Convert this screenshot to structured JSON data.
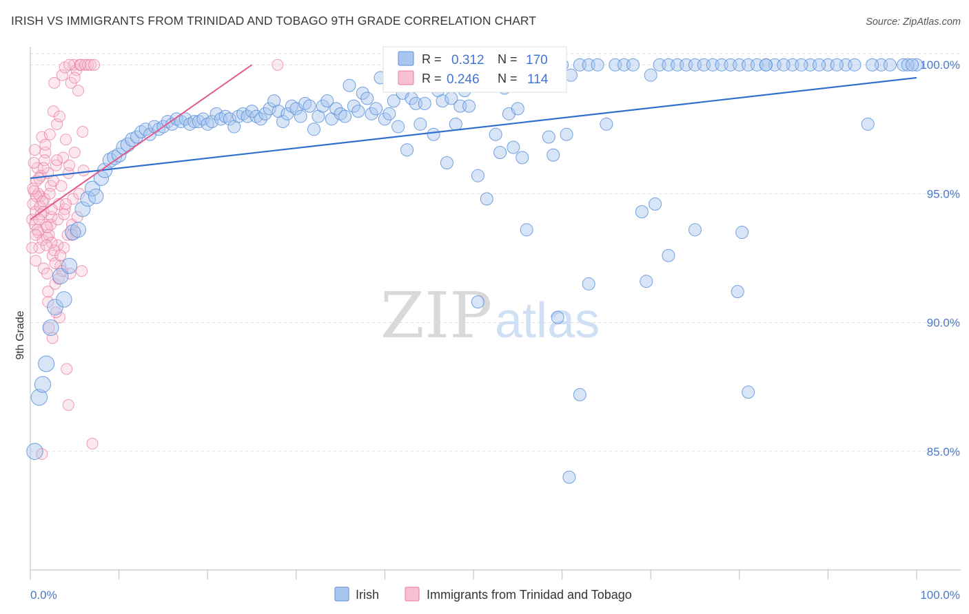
{
  "title": "IRISH VS IMMIGRANTS FROM TRINIDAD AND TOBAGO 9TH GRADE CORRELATION CHART",
  "source": "Source: ZipAtlas.com",
  "watermark": {
    "zip": "ZIP",
    "atlas": "atlas"
  },
  "colors": {
    "irish_fill": "#a9c6ee",
    "irish_stroke": "#5b8fd8",
    "irish_line": "#2f6fce",
    "tt_fill": "#f6c0d2",
    "tt_stroke": "#e87ca0",
    "tt_line": "#e35a8a",
    "grid": "#dcdcdc",
    "axis": "#bbbbbb",
    "tick_text": "#4a78c8"
  },
  "legend": {
    "r_label": "R =",
    "n_label": "N =",
    "rows": [
      {
        "series": "irish",
        "r": "0.312",
        "n": "170"
      },
      {
        "series": "tt",
        "r": "0.246",
        "n": "114"
      }
    ]
  },
  "bottom_legend": [
    {
      "series": "irish",
      "label": "Irish"
    },
    {
      "series": "tt",
      "label": "Immigrants from Trinidad and Tobago"
    }
  ],
  "chart_data": {
    "type": "scatter",
    "title": "IRISH VS IMMIGRANTS FROM TRINIDAD AND TOBAGO 9TH GRADE CORRELATION CHART",
    "xlabel": "",
    "ylabel": "9th Grade",
    "xlim": [
      0,
      100
    ],
    "ylim": [
      80.4,
      100.7
    ],
    "x_tick_labels": [
      "0.0%",
      "100.0%"
    ],
    "y_ticks": [
      85,
      90,
      95,
      100
    ],
    "y_tick_labels": [
      "85.0%",
      "90.0%",
      "95.0%",
      "100.0%"
    ],
    "grid": true,
    "legend_position": "top-center",
    "series": [
      {
        "name": "Irish",
        "trend": {
          "x": [
            0,
            100
          ],
          "y": [
            95.6,
            99.5
          ]
        },
        "points": [
          [
            0.5,
            85.0
          ],
          [
            1,
            87.1
          ],
          [
            1.4,
            87.6
          ],
          [
            1.8,
            88.4
          ],
          [
            2.3,
            89.8
          ],
          [
            2.8,
            90.6
          ],
          [
            3.8,
            90.9
          ],
          [
            3.4,
            91.8
          ],
          [
            4.4,
            92.2
          ],
          [
            4.8,
            93.5
          ],
          [
            5.4,
            93.6
          ],
          [
            5.9,
            94.4
          ],
          [
            6.5,
            94.8
          ],
          [
            7.0,
            95.2
          ],
          [
            7.4,
            94.9
          ],
          [
            8.0,
            95.6
          ],
          [
            8.4,
            95.9
          ],
          [
            9.0,
            96.3
          ],
          [
            9.5,
            96.4
          ],
          [
            10.0,
            96.5
          ],
          [
            10.5,
            96.8
          ],
          [
            11.0,
            96.9
          ],
          [
            11.5,
            97.1
          ],
          [
            12.0,
            97.2
          ],
          [
            12.5,
            97.4
          ],
          [
            13.0,
            97.5
          ],
          [
            13.5,
            97.3
          ],
          [
            14.0,
            97.6
          ],
          [
            14.5,
            97.5
          ],
          [
            15.0,
            97.6
          ],
          [
            15.5,
            97.8
          ],
          [
            16.0,
            97.7
          ],
          [
            16.5,
            97.9
          ],
          [
            17.0,
            97.8
          ],
          [
            17.5,
            97.9
          ],
          [
            18.0,
            97.7
          ],
          [
            18.5,
            97.8
          ],
          [
            19.0,
            97.8
          ],
          [
            19.5,
            97.9
          ],
          [
            20.0,
            97.7
          ],
          [
            20.5,
            97.8
          ],
          [
            21.0,
            98.1
          ],
          [
            21.5,
            97.9
          ],
          [
            22.0,
            98.0
          ],
          [
            22.5,
            97.9
          ],
          [
            23.0,
            97.6
          ],
          [
            23.5,
            98.0
          ],
          [
            24.0,
            98.1
          ],
          [
            24.5,
            98.0
          ],
          [
            25.0,
            98.2
          ],
          [
            25.5,
            98.0
          ],
          [
            26.0,
            97.9
          ],
          [
            26.5,
            98.1
          ],
          [
            27.0,
            98.3
          ],
          [
            27.5,
            98.6
          ],
          [
            28.0,
            98.2
          ],
          [
            28.5,
            97.8
          ],
          [
            29.0,
            98.1
          ],
          [
            29.5,
            98.4
          ],
          [
            30.0,
            98.3
          ],
          [
            30.5,
            98.0
          ],
          [
            31.0,
            98.5
          ],
          [
            31.5,
            98.4
          ],
          [
            32.0,
            97.5
          ],
          [
            32.5,
            98.0
          ],
          [
            33.0,
            98.4
          ],
          [
            33.5,
            98.6
          ],
          [
            34.0,
            97.9
          ],
          [
            34.5,
            98.3
          ],
          [
            35.0,
            98.1
          ],
          [
            35.5,
            98.0
          ],
          [
            36.0,
            99.2
          ],
          [
            36.5,
            98.4
          ],
          [
            37.0,
            98.2
          ],
          [
            37.5,
            98.9
          ],
          [
            38.0,
            98.7
          ],
          [
            38.5,
            98.1
          ],
          [
            39.0,
            98.3
          ],
          [
            39.5,
            99.5
          ],
          [
            40.0,
            97.9
          ],
          [
            40.5,
            98.1
          ],
          [
            41.0,
            98.6
          ],
          [
            41.5,
            97.6
          ],
          [
            42.0,
            98.9
          ],
          [
            42.5,
            96.7
          ],
          [
            43.0,
            98.7
          ],
          [
            43.5,
            98.5
          ],
          [
            44.0,
            97.7
          ],
          [
            44.5,
            98.5
          ],
          [
            45.0,
            99.6
          ],
          [
            45.5,
            97.3
          ],
          [
            46.0,
            99.0
          ],
          [
            46.5,
            98.6
          ],
          [
            47.0,
            96.2
          ],
          [
            47.5,
            98.7
          ],
          [
            48.0,
            97.7
          ],
          [
            48.5,
            98.4
          ],
          [
            49.0,
            99.0
          ],
          [
            49.5,
            98.4
          ],
          [
            50.0,
            100.0
          ],
          [
            50.5,
            95.7
          ],
          [
            51.0,
            99.6
          ],
          [
            51.5,
            94.8
          ],
          [
            52.0,
            99.5
          ],
          [
            52.5,
            97.3
          ],
          [
            53.0,
            96.6
          ],
          [
            53.5,
            99.1
          ],
          [
            54.0,
            98.1
          ],
          [
            54.5,
            96.8
          ],
          [
            55.0,
            98.3
          ],
          [
            55.5,
            96.4
          ],
          [
            56.0,
            93.6
          ],
          [
            56.5,
            100.0
          ],
          [
            57.0,
            99.3
          ],
          [
            58.0,
            100.0
          ],
          [
            58.5,
            97.2
          ],
          [
            59.0,
            96.5
          ],
          [
            59.5,
            90.2
          ],
          [
            60.0,
            100.0
          ],
          [
            60.5,
            97.3
          ],
          [
            61.0,
            99.6
          ],
          [
            62.0,
            100.0
          ],
          [
            63.0,
            100.0
          ],
          [
            64.0,
            100.0
          ],
          [
            65.0,
            97.7
          ],
          [
            66.0,
            100.0
          ],
          [
            67.0,
            100.0
          ],
          [
            68.0,
            100.0
          ],
          [
            69.0,
            94.3
          ],
          [
            70.0,
            99.6
          ],
          [
            70.5,
            94.6
          ],
          [
            71.0,
            100.0
          ],
          [
            72.0,
            100.0
          ],
          [
            73.0,
            100.0
          ],
          [
            74.0,
            100.0
          ],
          [
            75.0,
            100.0
          ],
          [
            76.0,
            100.0
          ],
          [
            77.0,
            100.0
          ],
          [
            78.0,
            100.0
          ],
          [
            79.0,
            100.0
          ],
          [
            80.0,
            100.0
          ],
          [
            81.0,
            100.0
          ],
          [
            82.0,
            100.0
          ],
          [
            84.0,
            100.0
          ],
          [
            86.0,
            100.0
          ],
          [
            88.0,
            100.0
          ],
          [
            94.5,
            97.7
          ],
          [
            100.0,
            100.0
          ],
          [
            90.0,
            100.0
          ],
          [
            92.0,
            100.0
          ],
          [
            96.0,
            100.0
          ],
          [
            83.0,
            100.0
          ],
          [
            85.0,
            100.0
          ],
          [
            87.0,
            100.0
          ],
          [
            89.0,
            100.0
          ],
          [
            91.0,
            100.0
          ],
          [
            93.0,
            100.0
          ],
          [
            95.0,
            100.0
          ],
          [
            97.0,
            100.0
          ],
          [
            80.3,
            93.5
          ],
          [
            79.8,
            91.2
          ],
          [
            75.0,
            93.6
          ],
          [
            72.0,
            92.6
          ],
          [
            69.5,
            91.6
          ],
          [
            63.0,
            91.5
          ],
          [
            62.0,
            87.2
          ],
          [
            60.8,
            84.0
          ],
          [
            50.5,
            90.8
          ],
          [
            81.0,
            87.3
          ],
          [
            83.0,
            100.0
          ],
          [
            98.5,
            100.0
          ],
          [
            99.0,
            100.0
          ],
          [
            99.5,
            100.0
          ]
        ]
      },
      {
        "name": "Immigrants from Trinidad and Tobago",
        "trend": {
          "x": [
            0,
            25
          ],
          "y": [
            94.0,
            100.0
          ]
        },
        "points": [
          [
            0.2,
            94.0
          ],
          [
            0.3,
            94.6
          ],
          [
            0.4,
            95.1
          ],
          [
            0.5,
            93.8
          ],
          [
            0.6,
            94.3
          ],
          [
            0.7,
            95.5
          ],
          [
            0.8,
            96.0
          ],
          [
            0.9,
            93.5
          ],
          [
            1.0,
            92.9
          ],
          [
            1.1,
            94.9
          ],
          [
            1.2,
            95.7
          ],
          [
            1.3,
            97.2
          ],
          [
            1.4,
            93.2
          ],
          [
            1.5,
            92.1
          ],
          [
            1.6,
            94.8
          ],
          [
            1.7,
            96.6
          ],
          [
            1.8,
            93.8
          ],
          [
            1.9,
            91.9
          ],
          [
            2.0,
            90.8
          ],
          [
            2.1,
            93.4
          ],
          [
            2.2,
            97.3
          ],
          [
            2.3,
            95.3
          ],
          [
            2.4,
            94.1
          ],
          [
            2.5,
            92.6
          ],
          [
            2.6,
            98.2
          ],
          [
            2.7,
            99.3
          ],
          [
            2.8,
            91.5
          ],
          [
            2.9,
            96.1
          ],
          [
            3.0,
            97.7
          ],
          [
            3.1,
            93.0
          ],
          [
            3.2,
            94.6
          ],
          [
            3.3,
            90.2
          ],
          [
            3.4,
            92.2
          ],
          [
            3.5,
            95.3
          ],
          [
            3.6,
            99.6
          ],
          [
            3.7,
            96.4
          ],
          [
            3.8,
            92.9
          ],
          [
            3.9,
            94.4
          ],
          [
            4.0,
            97.1
          ],
          [
            4.1,
            88.2
          ],
          [
            4.2,
            93.4
          ],
          [
            4.3,
            95.8
          ],
          [
            4.4,
            96.1
          ],
          [
            4.5,
            91.9
          ],
          [
            4.6,
            99.3
          ],
          [
            4.7,
            93.8
          ],
          [
            4.8,
            94.8
          ],
          [
            4.9,
            100.0
          ],
          [
            5.0,
            96.6
          ],
          [
            5.1,
            93.5
          ],
          [
            5.2,
            99.8
          ],
          [
            5.3,
            94.1
          ],
          [
            5.4,
            99.0
          ],
          [
            5.5,
            95.0
          ],
          [
            5.6,
            100.0
          ],
          [
            5.7,
            100.0
          ],
          [
            5.8,
            92.0
          ],
          [
            5.9,
            97.4
          ],
          [
            6.0,
            95.9
          ],
          [
            6.2,
            100.0
          ],
          [
            6.5,
            100.0
          ],
          [
            6.8,
            100.0
          ],
          [
            7.0,
            85.3
          ],
          [
            7.2,
            100.0
          ],
          [
            2.0,
            91.2
          ],
          [
            2.5,
            89.4
          ],
          [
            4.3,
            86.8
          ],
          [
            1.3,
            84.9
          ],
          [
            0.6,
            92.4
          ],
          [
            0.9,
            95.0
          ],
          [
            1.1,
            94.5
          ],
          [
            1.5,
            94.3
          ],
          [
            1.9,
            93.3
          ],
          [
            2.3,
            93.8
          ],
          [
            2.7,
            92.8
          ],
          [
            3.1,
            94.0
          ],
          [
            0.4,
            96.2
          ],
          [
            0.7,
            94.9
          ],
          [
            1.0,
            95.6
          ],
          [
            1.2,
            94.2
          ],
          [
            1.6,
            96.3
          ],
          [
            2.0,
            95.8
          ],
          [
            2.4,
            93.1
          ],
          [
            2.8,
            92.3
          ],
          [
            3.2,
            91.7
          ],
          [
            3.6,
            92.0
          ],
          [
            4.0,
            94.6
          ],
          [
            0.3,
            95.2
          ],
          [
            0.8,
            93.6
          ],
          [
            1.4,
            94.7
          ],
          [
            1.8,
            93.0
          ],
          [
            2.2,
            95.0
          ],
          [
            2.6,
            95.5
          ],
          [
            3.0,
            96.3
          ],
          [
            3.4,
            92.6
          ],
          [
            3.8,
            94.2
          ],
          [
            0.5,
            96.7
          ],
          [
            1.7,
            96.9
          ],
          [
            2.1,
            89.8
          ],
          [
            2.9,
            90.4
          ],
          [
            0.2,
            92.9
          ],
          [
            0.6,
            93.4
          ],
          [
            1.0,
            94.0
          ],
          [
            1.5,
            96.0
          ],
          [
            1.9,
            93.7
          ],
          [
            2.4,
            94.4
          ],
          [
            3.3,
            98.0
          ],
          [
            4.7,
            93.4
          ],
          [
            27.9,
            100.0
          ],
          [
            3.9,
            99.9
          ],
          [
            4.4,
            100.0
          ],
          [
            5.0,
            99.5
          ]
        ]
      }
    ]
  }
}
